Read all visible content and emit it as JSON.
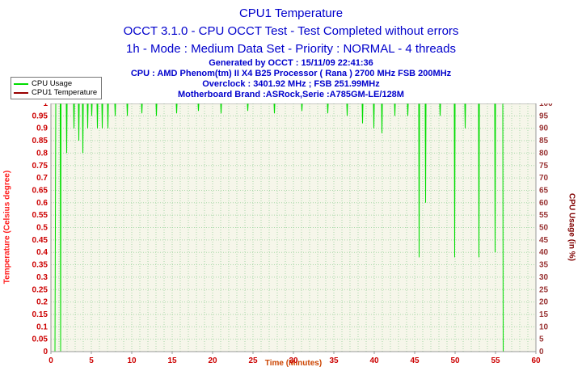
{
  "header": {
    "title": "CPU1 Temperature",
    "subtitle1": "OCCT 3.1.0 - CPU OCCT Test - Test Completed without errors",
    "subtitle2": "1h - Mode : Medium Data Set - Priority : NORMAL - 4 threads",
    "info1": "Generated by OCCT : 15/11/09 22:41:36",
    "info2": "CPU : AMD Phenom(tm) II X4 B25 Processor ( Rana ) 2700 MHz FSB 200MHz",
    "info3": "Overclock : 3401.92 MHz ; FSB 251.99MHz",
    "info4": "Motherboard Brand :ASRock,Serie :A785GM-LE/128M"
  },
  "legend": {
    "items": [
      {
        "label": "CPU Usage",
        "color": "#00dd00"
      },
      {
        "label": "CPU1 Temperature",
        "color": "#990000"
      }
    ]
  },
  "colors": {
    "title_blue": "#0000cc",
    "plot_bg": "#f6f6ea",
    "plot_border": "#999999",
    "grid_green": "#a8d8a8",
    "usage_green": "#00dd00",
    "temp_maroon": "#990000",
    "tick_left": "#cc0000",
    "tick_right": "#993333",
    "tick_x": "#cc0000",
    "ytitle_left": "#ff2020",
    "ytitle_right": "#800000",
    "xtitle_orange": "#cc4400"
  },
  "chart_data": {
    "type": "line",
    "title": "CPU1 Temperature",
    "xlabel": "Time (Minutes)",
    "ylabel_left": "Temperature (Celsius degree)",
    "ylabel_right": "CPU Usage (in %)",
    "xlim": [
      0,
      60
    ],
    "ylim_left": [
      0,
      1
    ],
    "ylim_right": [
      0,
      100
    ],
    "x_ticks": [
      0,
      5,
      10,
      15,
      20,
      25,
      30,
      35,
      40,
      45,
      50,
      55,
      60
    ],
    "y_ticks_left": [
      0,
      0.05,
      0.1,
      0.15,
      0.2,
      0.25,
      0.3,
      0.35,
      0.4,
      0.45,
      0.5,
      0.55,
      0.6,
      0.65,
      0.7,
      0.75,
      0.8,
      0.85,
      0.9,
      0.95,
      1
    ],
    "y_ticks_right": [
      0,
      5,
      10,
      15,
      20,
      25,
      30,
      35,
      40,
      45,
      50,
      55,
      60,
      65,
      70,
      75,
      80,
      85,
      90,
      95,
      100
    ],
    "grid": true,
    "x_grid_step": 1,
    "legend_position": "top-left",
    "series": [
      {
        "name": "CPU Usage",
        "axis": "right",
        "color": "#00dd00",
        "points": [
          [
            0.5,
            0
          ],
          [
            0.6,
            100
          ],
          [
            1.15,
            100
          ],
          [
            1.2,
            0
          ],
          [
            1.25,
            100
          ],
          [
            1.9,
            100
          ],
          [
            1.95,
            80
          ],
          [
            2.0,
            100
          ],
          [
            2.8,
            100
          ],
          [
            2.85,
            90
          ],
          [
            2.9,
            100
          ],
          [
            3.4,
            100
          ],
          [
            3.45,
            85
          ],
          [
            3.5,
            100
          ],
          [
            3.9,
            100
          ],
          [
            3.95,
            80
          ],
          [
            4.0,
            100
          ],
          [
            4.5,
            100
          ],
          [
            4.55,
            90
          ],
          [
            4.6,
            100
          ],
          [
            5.0,
            100
          ],
          [
            5.05,
            95
          ],
          [
            5.1,
            100
          ],
          [
            5.7,
            100
          ],
          [
            5.75,
            90
          ],
          [
            5.8,
            100
          ],
          [
            6.3,
            100
          ],
          [
            6.35,
            90
          ],
          [
            6.4,
            100
          ],
          [
            7.0,
            100
          ],
          [
            7.05,
            90
          ],
          [
            7.1,
            100
          ],
          [
            7.9,
            100
          ],
          [
            7.95,
            95
          ],
          [
            8.0,
            100
          ],
          [
            9.4,
            100
          ],
          [
            9.45,
            95
          ],
          [
            9.5,
            100
          ],
          [
            11.2,
            100
          ],
          [
            11.25,
            96
          ],
          [
            11.3,
            100
          ],
          [
            13.0,
            100
          ],
          [
            13.05,
            95
          ],
          [
            13.1,
            100
          ],
          [
            15.5,
            100
          ],
          [
            15.55,
            96
          ],
          [
            15.6,
            100
          ],
          [
            18.2,
            100
          ],
          [
            18.25,
            97
          ],
          [
            18.3,
            100
          ],
          [
            21.0,
            100
          ],
          [
            21.05,
            96
          ],
          [
            21.1,
            100
          ],
          [
            24.3,
            100
          ],
          [
            24.35,
            97
          ],
          [
            24.4,
            100
          ],
          [
            27.6,
            100
          ],
          [
            27.65,
            96
          ],
          [
            27.7,
            100
          ],
          [
            31.0,
            100
          ],
          [
            31.05,
            97
          ],
          [
            31.1,
            100
          ],
          [
            34.2,
            100
          ],
          [
            34.25,
            96
          ],
          [
            34.3,
            100
          ],
          [
            36.6,
            100
          ],
          [
            36.65,
            95
          ],
          [
            36.7,
            100
          ],
          [
            38.5,
            100
          ],
          [
            38.55,
            92
          ],
          [
            38.6,
            100
          ],
          [
            39.9,
            100
          ],
          [
            39.95,
            90
          ],
          [
            40.0,
            100
          ],
          [
            40.9,
            100
          ],
          [
            40.95,
            88
          ],
          [
            41.0,
            100
          ],
          [
            42.5,
            100
          ],
          [
            42.55,
            95
          ],
          [
            42.6,
            100
          ],
          [
            44.1,
            100
          ],
          [
            44.15,
            95
          ],
          [
            44.2,
            100
          ],
          [
            45.5,
            100
          ],
          [
            45.55,
            38
          ],
          [
            45.6,
            100
          ],
          [
            46.3,
            100
          ],
          [
            46.35,
            60
          ],
          [
            46.4,
            100
          ],
          [
            48.1,
            100
          ],
          [
            48.15,
            95
          ],
          [
            48.2,
            100
          ],
          [
            49.9,
            100
          ],
          [
            49.95,
            38
          ],
          [
            50.0,
            100
          ],
          [
            51.2,
            100
          ],
          [
            51.25,
            90
          ],
          [
            51.3,
            100
          ],
          [
            52.9,
            100
          ],
          [
            52.95,
            38
          ],
          [
            53.0,
            100
          ],
          [
            54.9,
            100
          ],
          [
            54.95,
            40
          ],
          [
            55.0,
            100
          ],
          [
            55.9,
            100
          ],
          [
            55.95,
            0
          ]
        ]
      },
      {
        "name": "CPU1 Temperature",
        "axis": "left",
        "color": "#990000",
        "points": []
      }
    ]
  }
}
